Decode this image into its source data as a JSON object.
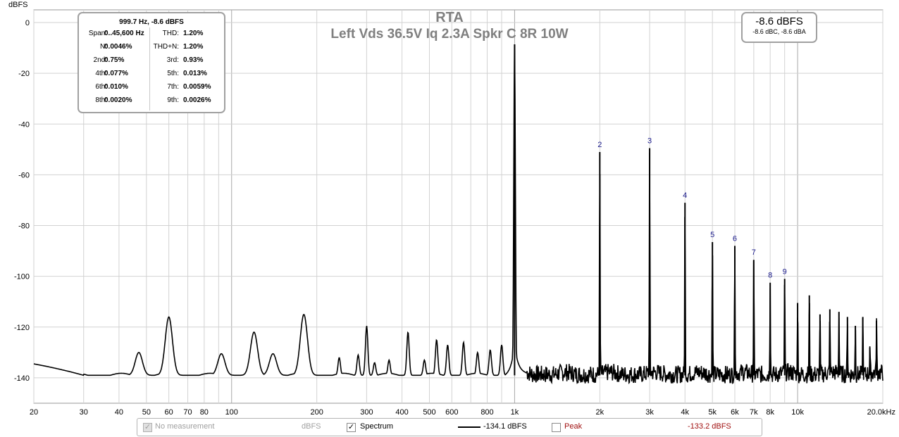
{
  "chart_data": {
    "type": "line",
    "title": "RTA",
    "subtitle": "Left Vds 36.5V Iq 2.3A Spkr C 8R 10W",
    "ylabel": "dBFS",
    "xscale": "log",
    "xlim": [
      20,
      20000
    ],
    "ylim": [
      -150,
      5
    ],
    "grid": true,
    "yticks": [
      0,
      -20,
      -40,
      -60,
      -80,
      -100,
      -120,
      -140
    ],
    "ytick_labels": [
      "0",
      "-20",
      "-40",
      "-60",
      "-80",
      "-100",
      "-120",
      "-140"
    ],
    "xticks": [
      20,
      30,
      40,
      50,
      60,
      70,
      80,
      100,
      200,
      300,
      400,
      500,
      600,
      800,
      1000,
      2000,
      3000,
      4000,
      5000,
      6000,
      7000,
      8000,
      10000,
      20000
    ],
    "xtick_labels": [
      "20",
      "30",
      "40",
      "50",
      "60",
      "70",
      "80",
      "100",
      "200",
      "300",
      "400",
      "500",
      "600",
      "800",
      "1k",
      "2k",
      "3k",
      "4k",
      "5k",
      "6k",
      "7k",
      "8k",
      "10k",
      "20.0kHz"
    ],
    "series": [
      {
        "name": "Spectrum",
        "color": "#000000",
        "noise_floor": -139,
        "fundamental": {
          "freq": 999.7,
          "level": -8.6
        },
        "harmonics": [
          {
            "n": "2",
            "freq": 2000,
            "level": -51
          },
          {
            "n": "3",
            "freq": 3000,
            "level": -49.5
          },
          {
            "n": "4",
            "freq": 4000,
            "level": -71
          },
          {
            "n": "5",
            "freq": 5000,
            "level": -86.5
          },
          {
            "n": "6",
            "freq": 6000,
            "level": -88
          },
          {
            "n": "7",
            "freq": 7000,
            "level": -93.5
          },
          {
            "n": "8",
            "freq": 8000,
            "level": -102.5
          },
          {
            "n": "9",
            "freq": 9000,
            "level": -101
          },
          {
            "n": "",
            "freq": 10000,
            "level": -110.5
          },
          {
            "n": "",
            "freq": 11000,
            "level": -107.5
          },
          {
            "n": "",
            "freq": 12000,
            "level": -115
          },
          {
            "n": "",
            "freq": 13000,
            "level": -113
          },
          {
            "n": "",
            "freq": 14000,
            "level": -114
          },
          {
            "n": "",
            "freq": 15000,
            "level": -116
          },
          {
            "n": "",
            "freq": 16000,
            "level": -119.5
          },
          {
            "n": "",
            "freq": 17000,
            "level": -116
          },
          {
            "n": "",
            "freq": 18000,
            "level": -128
          },
          {
            "n": "",
            "freq": 19000,
            "level": -117.5
          }
        ],
        "spurs": [
          {
            "freq": 47,
            "level": -130
          },
          {
            "freq": 60,
            "level": -116
          },
          {
            "freq": 92,
            "level": -130.5
          },
          {
            "freq": 120,
            "level": -122
          },
          {
            "freq": 140,
            "level": -130.5
          },
          {
            "freq": 180,
            "level": -115
          },
          {
            "freq": 240,
            "level": -132
          },
          {
            "freq": 280,
            "level": -131
          },
          {
            "freq": 300,
            "level": -119.5
          },
          {
            "freq": 320,
            "level": -134
          },
          {
            "freq": 360,
            "level": -133
          },
          {
            "freq": 420,
            "level": -122
          },
          {
            "freq": 480,
            "level": -133
          },
          {
            "freq": 530,
            "level": -125
          },
          {
            "freq": 580,
            "level": -127
          },
          {
            "freq": 660,
            "level": -126
          },
          {
            "freq": 740,
            "level": -130
          },
          {
            "freq": 820,
            "level": -129
          },
          {
            "freq": 900,
            "level": -127
          }
        ]
      }
    ]
  },
  "thd_box": {
    "header": "999.7 Hz, -8.6 dBFS",
    "rows": [
      {
        "k1": "Span:",
        "v1": "0..45,600 Hz",
        "k2": "THD:",
        "v2": "1.20%"
      },
      {
        "k1": "N:",
        "v1": "0.0046%",
        "k2": "THD+N:",
        "v2": "1.20%"
      },
      {
        "k1": "2nd:",
        "v1": "0.75%",
        "k2": "3rd:",
        "v2": "0.93%"
      },
      {
        "k1": "4th:",
        "v1": "0.077%",
        "k2": "5th:",
        "v2": "0.013%"
      },
      {
        "k1": "6th:",
        "v1": "0.010%",
        "k2": "7th:",
        "v2": "0.0059%"
      },
      {
        "k1": "8th:",
        "v1": "0.0020%",
        "k2": "9th:",
        "v2": "0.0026%"
      }
    ]
  },
  "level_box": {
    "main": "-8.6 dBFS",
    "sub": "-8.6 dBC, -8.6 dBA"
  },
  "legend": {
    "no_measurement": {
      "label": "No measurement",
      "unit": "dBFS",
      "checked": true,
      "disabled": true
    },
    "spectrum": {
      "label": "Spectrum",
      "value": "-134.1 dBFS",
      "checked": true,
      "color": "#000000"
    },
    "peak": {
      "label": "Peak",
      "value": "-133.2 dBFS",
      "checked": false,
      "color": "#a01010"
    }
  },
  "colors": {
    "grid": "#d2d2d2",
    "grid_major": "#a8a8a8",
    "harmonic_label": "#1a1a8c",
    "title": "#7f7f7f"
  }
}
